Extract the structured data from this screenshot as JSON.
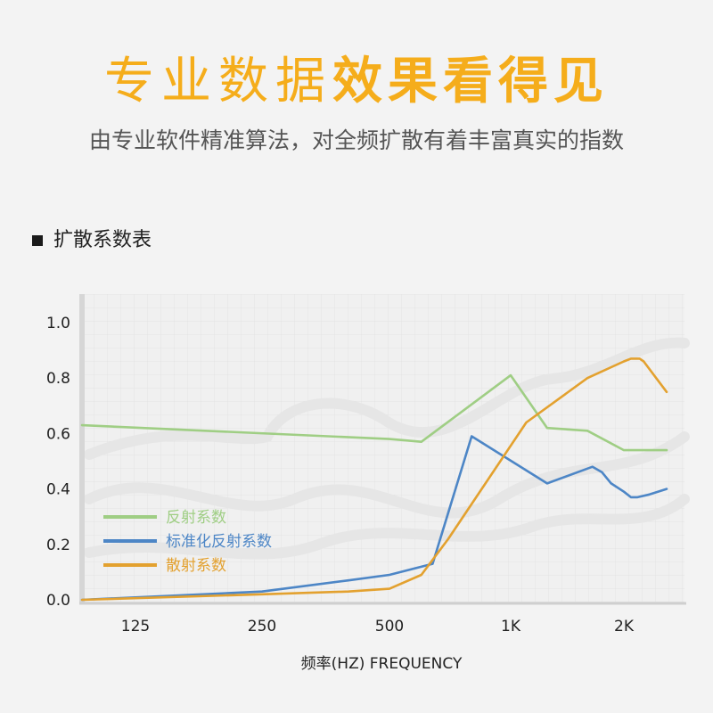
{
  "header": {
    "title_light": "专业数据",
    "title_bold": "效果看得见",
    "subtitle": "由专业软件精准算法，对全频扩散有着丰富真实的指数"
  },
  "section": {
    "title": "扩散系数表"
  },
  "colors": {
    "accent": "#f5ad1b",
    "reflection": "#9fce84",
    "normalized": "#4d86c6",
    "scattering": "#e3a12f"
  },
  "chart_data": {
    "type": "line",
    "title": "",
    "xlabel": "频率(HZ) FREQUENCY",
    "ylabel": "",
    "x_scale": "log",
    "x_ticks": [
      {
        "value": 125,
        "label": "125"
      },
      {
        "value": 250,
        "label": "250"
      },
      {
        "value": 500,
        "label": "500"
      },
      {
        "value": 1000,
        "label": "1K"
      },
      {
        "value": 2000,
        "label": "2K"
      }
    ],
    "xlim": [
      80,
      3200
    ],
    "ylim": [
      0.0,
      1.1
    ],
    "y_ticks": [
      {
        "value": 0.0,
        "label": "0.0"
      },
      {
        "value": 0.2,
        "label": "0.2"
      },
      {
        "value": 0.4,
        "label": "0.4"
      },
      {
        "value": 0.6,
        "label": "0.6"
      },
      {
        "value": 0.8,
        "label": "0.8"
      },
      {
        "value": 1.0,
        "label": "1.0"
      }
    ],
    "grid": true,
    "legend_position": "bottom-left",
    "series": [
      {
        "name": "反射系数",
        "color": "#9fce84",
        "points": [
          [
            80,
            0.63
          ],
          [
            500,
            0.58
          ],
          [
            600,
            0.57
          ],
          [
            1000,
            0.81
          ],
          [
            1250,
            0.62
          ],
          [
            1600,
            0.61
          ],
          [
            2000,
            0.54
          ],
          [
            3100,
            0.54
          ]
        ]
      },
      {
        "name": "标准化反射系数",
        "color": "#4d86c6",
        "points": [
          [
            80,
            0.0
          ],
          [
            250,
            0.03
          ],
          [
            400,
            0.07
          ],
          [
            500,
            0.09
          ],
          [
            640,
            0.13
          ],
          [
            800,
            0.59
          ],
          [
            1250,
            0.42
          ],
          [
            1650,
            0.48
          ],
          [
            1750,
            0.46
          ],
          [
            1850,
            0.42
          ],
          [
            2000,
            0.39
          ],
          [
            2150,
            0.37
          ],
          [
            2300,
            0.37
          ],
          [
            2600,
            0.38
          ],
          [
            3100,
            0.4
          ]
        ]
      },
      {
        "name": "散射系数",
        "color": "#e3a12f",
        "points": [
          [
            80,
            0.0
          ],
          [
            250,
            0.02
          ],
          [
            400,
            0.03
          ],
          [
            500,
            0.04
          ],
          [
            600,
            0.09
          ],
          [
            700,
            0.22
          ],
          [
            1100,
            0.64
          ],
          [
            1600,
            0.8
          ],
          [
            2000,
            0.86
          ],
          [
            2150,
            0.87
          ],
          [
            2350,
            0.87
          ],
          [
            2450,
            0.86
          ],
          [
            3100,
            0.75
          ]
        ]
      }
    ]
  }
}
